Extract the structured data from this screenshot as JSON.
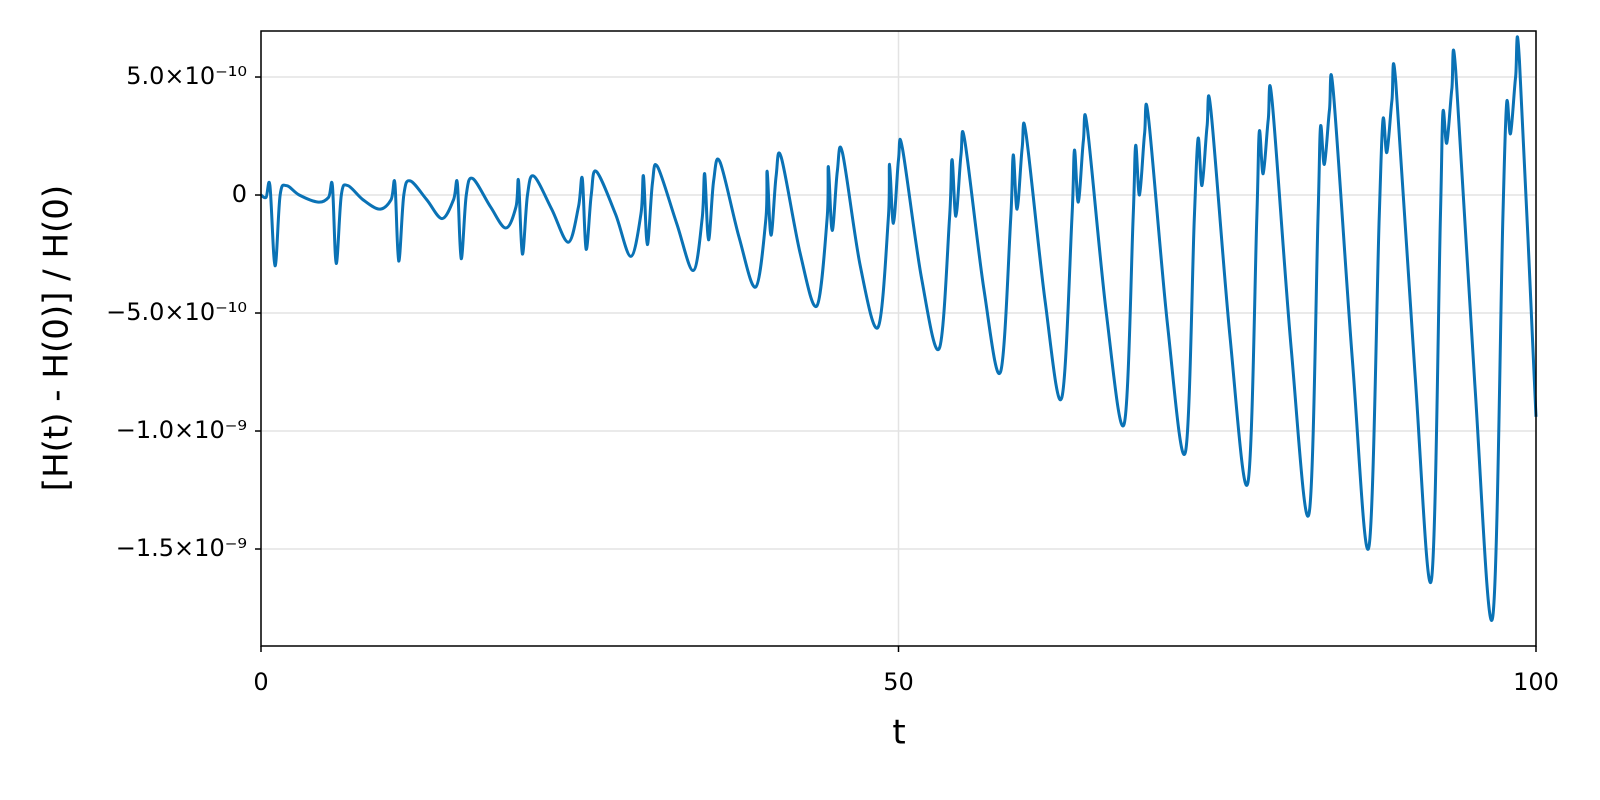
{
  "chart_data": {
    "type": "line",
    "xlabel": "t",
    "ylabel": "[H(t) - H(0)] / H(0)",
    "xlim": [
      0,
      100
    ],
    "xticks": [
      0,
      50,
      100
    ],
    "ylim": [
      -1.911e-09,
      6.95e-10
    ],
    "yticks": [
      {
        "value": 5e-10,
        "label": "5.0×10⁻¹⁰"
      },
      0,
      {
        "value": -5e-10,
        "label": "−5.0×10⁻¹⁰"
      },
      {
        "value": -1e-09,
        "label": "−1.0×10⁻⁹"
      },
      {
        "value": -1.5e-09,
        "label": "−1.5×10⁻⁹"
      }
    ],
    "grid": true,
    "series": [
      {
        "color": "#0a72b5",
        "x": [
          0,
          0.4,
          0.7,
          1.1,
          1.5,
          2.0,
          3.0,
          4.5,
          5.3,
          5.6,
          5.9,
          6.3,
          6.8,
          8,
          9.3,
          10.2,
          10.5,
          10.8,
          11.2,
          11.7,
          13,
          14.2,
          15.1,
          15.4,
          15.7,
          16.1,
          16.6,
          18,
          19.2,
          20,
          20.2,
          20.5,
          20.9,
          21.4,
          22.8,
          24.1,
          24.9,
          25.2,
          25.5,
          25.9,
          26.3,
          27.8,
          29.0,
          29.8,
          30.0,
          30.3,
          30.7,
          31.1,
          32.6,
          33.9,
          34.6,
          34.8,
          35.1,
          35.5,
          36.0,
          37.5,
          38.8,
          39.6,
          39.7,
          40.0,
          40.4,
          40.8,
          42.3,
          43.6,
          44.4,
          44.5,
          44.8,
          45.2,
          45.6,
          47.0,
          48.4,
          49.2,
          49.3,
          49.6,
          50.0,
          50.3,
          51.8,
          53.2,
          54.0,
          54.2,
          54.5,
          54.9,
          55.2,
          56.7,
          58.0,
          58.8,
          59.0,
          59.3,
          59.7,
          60.0,
          61.5,
          62.8,
          63.6,
          63.8,
          64.1,
          64.5,
          64.8,
          66.3,
          67.7,
          68.4,
          68.6,
          68.9,
          69.3,
          69.6,
          71.1,
          72.5,
          73.2,
          73.5,
          73.8,
          74.2,
          74.5,
          76.0,
          77.4,
          78.1,
          78.3,
          78.6,
          79.0,
          79.3,
          80.8,
          82.2,
          82.9,
          83.1,
          83.4,
          83.8,
          84.1,
          85.6,
          86.9,
          87.7,
          88.0,
          88.3,
          88.7,
          89.0,
          90.5,
          91.8,
          92.5,
          92.7,
          93.0,
          93.4,
          93.7,
          95.2,
          96.6,
          97.4,
          97.7,
          98.0,
          98.4,
          98.7,
          100
        ],
        "values": [
          0,
          -1e-11,
          4e-11,
          -3e-10,
          0,
          4e-11,
          0,
          -3e-11,
          -1e-11,
          4e-11,
          -2.9e-10,
          0,
          4e-11,
          -2e-11,
          -6e-11,
          -2e-11,
          5e-11,
          -2.8e-10,
          0,
          6e-11,
          -2e-11,
          -1e-10,
          -2e-11,
          5e-11,
          -2.7e-10,
          0,
          7e-11,
          -5e-11,
          -1.4e-10,
          -5e-11,
          6e-11,
          -2.5e-10,
          0,
          8e-11,
          -6e-11,
          -2e-10,
          -5e-11,
          7e-11,
          -2.3e-10,
          0,
          1e-10,
          -8e-11,
          -2.6e-10,
          -8e-11,
          8e-11,
          -2.1e-10,
          5e-11,
          1.2e-10,
          -1.2e-10,
          -3.2e-10,
          -1e-10,
          9e-11,
          -1.9e-10,
          6e-11,
          1.4e-10,
          -1.8e-10,
          -3.9e-10,
          -1e-10,
          1e-10,
          -1.7e-10,
          8e-11,
          1.6e-10,
          -2.5e-10,
          -4.7e-10,
          -1e-10,
          1.2e-10,
          -1.5e-10,
          1e-10,
          1.8e-10,
          -3e-10,
          -5.6e-10,
          -1e-10,
          1.3e-10,
          -1.2e-10,
          1.5e-10,
          2e-10,
          -3.5e-10,
          -6.5e-10,
          -1e-10,
          1.5e-10,
          -9e-11,
          1.7e-10,
          2.3e-10,
          -4e-10,
          -7.5e-10,
          -1e-10,
          1.7e-10,
          -6e-11,
          2e-10,
          2.6e-10,
          -4.5e-10,
          -8.6e-10,
          -1e-10,
          1.9e-10,
          -3e-11,
          2.3e-10,
          2.9e-10,
          -5e-10,
          -9.7e-10,
          -1e-10,
          2.1e-10,
          0,
          2.6e-10,
          3.3e-10,
          -5.5e-10,
          -1.09e-09,
          -1e-10,
          2.4e-10,
          4e-11,
          2.9e-10,
          3.6e-10,
          -6e-10,
          -1.22e-09,
          -1e-10,
          2.7e-10,
          9e-11,
          3.2e-10,
          4e-10,
          -6.5e-10,
          -1.35e-09,
          -1e-10,
          2.9e-10,
          1.3e-10,
          3.6e-10,
          4.4e-10,
          -7e-10,
          -1.49e-09,
          -1e-10,
          3.2e-10,
          1.8e-10,
          4e-10,
          4.8e-10,
          -7.5e-10,
          -1.63e-09,
          -1e-10,
          3.5e-10,
          2.2e-10,
          4.5e-10,
          5.3e-10,
          -8e-10,
          -1.79e-09,
          -1e-10,
          3.9e-10,
          2.6e-10,
          5e-10,
          5.7e-10,
          -9.4e-10
        ]
      }
    ]
  }
}
